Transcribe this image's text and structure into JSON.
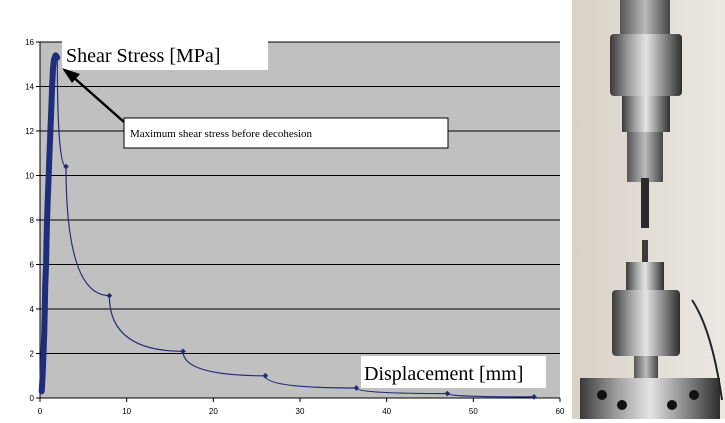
{
  "chart_data": {
    "type": "line",
    "ylabel": "Shear Stress [MPa]",
    "xlabel": "Displacement [mm]",
    "annotation": "Maximum shear stress before decohesion",
    "xlim": [
      0,
      60
    ],
    "ylim": [
      0,
      16
    ],
    "x_ticks": [
      "0",
      "10",
      "20",
      "30",
      "40",
      "50",
      "60"
    ],
    "y_ticks": [
      "0",
      "2",
      "4",
      "6",
      "8",
      "10",
      "12",
      "14",
      "16"
    ],
    "grid": "horizontal",
    "series": [
      {
        "values": [
          [
            0.2,
            0.3
          ],
          [
            0.3,
            1.0
          ],
          [
            0.4,
            2.0
          ],
          [
            0.5,
            3.0
          ],
          [
            0.55,
            4.0
          ],
          [
            0.6,
            5.0
          ],
          [
            0.7,
            6.0
          ],
          [
            0.75,
            7.0
          ],
          [
            0.8,
            7.8
          ],
          [
            0.9,
            9.0
          ],
          [
            1.0,
            10.0
          ],
          [
            1.1,
            11.0
          ],
          [
            1.2,
            12.0
          ],
          [
            1.3,
            13.0
          ],
          [
            1.4,
            14.0
          ],
          [
            1.5,
            14.8
          ],
          [
            1.6,
            15.2
          ],
          [
            1.8,
            15.4
          ],
          [
            2.0,
            15.3
          ],
          [
            3.0,
            10.4
          ],
          [
            8.0,
            4.6
          ],
          [
            16.5,
            2.1
          ],
          [
            26.0,
            1.0
          ],
          [
            36.5,
            0.45
          ],
          [
            47.0,
            0.2
          ],
          [
            57.0,
            0.05
          ]
        ]
      }
    ]
  },
  "colors": {
    "plot_bg": "#c0c0c0",
    "series": "#1f2d7a",
    "grid": "#000000"
  },
  "photo": {
    "icon": "tensile-test-fixture-photo"
  }
}
